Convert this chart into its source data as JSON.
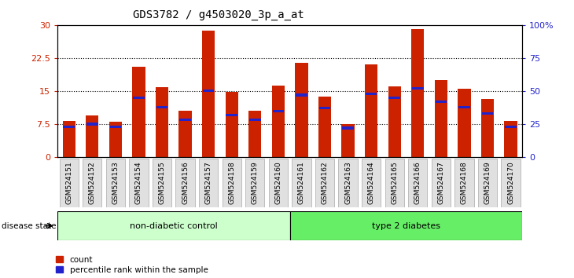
{
  "title": "GDS3782 / g4503020_3p_a_at",
  "samples": [
    "GSM524151",
    "GSM524152",
    "GSM524153",
    "GSM524154",
    "GSM524155",
    "GSM524156",
    "GSM524157",
    "GSM524158",
    "GSM524159",
    "GSM524160",
    "GSM524161",
    "GSM524162",
    "GSM524163",
    "GSM524164",
    "GSM524165",
    "GSM524166",
    "GSM524167",
    "GSM524168",
    "GSM524169",
    "GSM524170"
  ],
  "counts": [
    8.2,
    9.5,
    8.1,
    20.5,
    15.8,
    10.5,
    28.8,
    14.8,
    10.5,
    16.2,
    21.5,
    13.8,
    7.5,
    21.0,
    16.0,
    29.0,
    17.5,
    15.5,
    13.2,
    8.2
  ],
  "percentiles": [
    23,
    25,
    23,
    45,
    38,
    28,
    50,
    32,
    28,
    35,
    47,
    37,
    22,
    48,
    45,
    52,
    42,
    38,
    33,
    23
  ],
  "bar_color": "#cc2200",
  "percentile_color": "#2222cc",
  "ylim_left": [
    0,
    30
  ],
  "ylim_right": [
    0,
    100
  ],
  "yticks_left": [
    0,
    7.5,
    15,
    22.5,
    30
  ],
  "ytick_left_labels": [
    "0",
    "7.5",
    "15",
    "22.5",
    "30"
  ],
  "yticks_right": [
    0,
    25,
    50,
    75,
    100
  ],
  "ytick_right_labels": [
    "0",
    "25",
    "50",
    "75",
    "100%"
  ],
  "group1_label": "non-diabetic control",
  "group2_label": "type 2 diabetes",
  "group1_count": 10,
  "group2_count": 10,
  "group1_color": "#ccffcc",
  "group2_color": "#66ee66",
  "disease_label": "disease state",
  "legend_count": "count",
  "legend_percentile": "percentile rank within the sample",
  "bar_width": 0.55,
  "xlabel_fontsize": 6.5,
  "title_fontsize": 10,
  "tick_bg_color": "#e0e0e0",
  "tick_border_color": "#aaaaaa"
}
